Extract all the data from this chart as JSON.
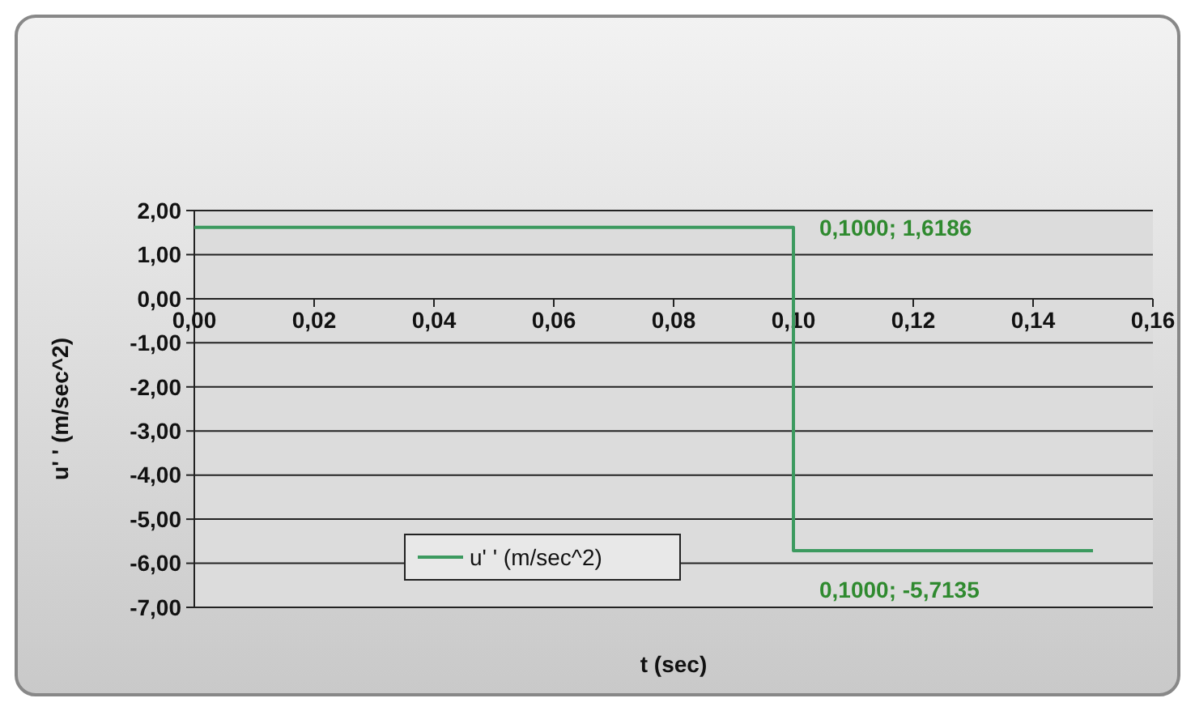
{
  "chart_data": {
    "type": "line",
    "xlabel": "t (sec)",
    "ylabel": "u' ' (m/sec^2)",
    "x": [
      0,
      0.1,
      0.1,
      0.15
    ],
    "series": [
      {
        "name": "u' ' (m/sec^2)",
        "color": "#3c9a5f",
        "values": [
          1.6186,
          1.6186,
          -5.7135,
          -5.7135
        ]
      }
    ],
    "xlim": [
      0,
      0.16
    ],
    "ylim": [
      -7,
      2
    ],
    "xticks": [
      {
        "value": 0,
        "label": "0,00"
      },
      {
        "value": 0.02,
        "label": "0,02"
      },
      {
        "value": 0.04,
        "label": "0,04"
      },
      {
        "value": 0.06,
        "label": "0,06"
      },
      {
        "value": 0.08,
        "label": "0,08"
      },
      {
        "value": 0.1,
        "label": "0,10"
      },
      {
        "value": 0.12,
        "label": "0,12"
      },
      {
        "value": 0.14,
        "label": "0,14"
      },
      {
        "value": 0.16,
        "label": "0,16"
      }
    ],
    "yticks": [
      {
        "value": 2,
        "label": "2,00"
      },
      {
        "value": 1,
        "label": "1,00"
      },
      {
        "value": 0,
        "label": "0,00"
      },
      {
        "value": -1,
        "label": "-1,00"
      },
      {
        "value": -2,
        "label": "-2,00"
      },
      {
        "value": -3,
        "label": "-3,00"
      },
      {
        "value": -4,
        "label": "-4,00"
      },
      {
        "value": -5,
        "label": "-5,00"
      },
      {
        "value": -6,
        "label": "-6,00"
      },
      {
        "value": -7,
        "label": "-7,00"
      }
    ],
    "annotations": [
      {
        "text": "0,1000; 1,6186",
        "x": 0.1,
        "y": 1.6186
      },
      {
        "text": "0,1000; -5,7135",
        "x": 0.1,
        "y": -5.7135
      }
    ],
    "grid": "y",
    "legend": "bottom left",
    "marker": "none",
    "line_style": "solid"
  }
}
